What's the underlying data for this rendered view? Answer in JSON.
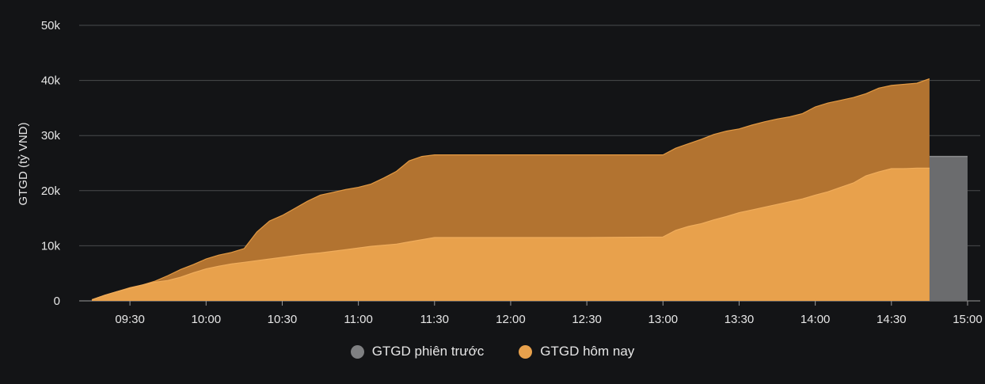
{
  "chart_data": {
    "type": "area",
    "ylabel": "GTGD (tỷ VND)",
    "ylim": [
      0,
      50000
    ],
    "yticks": [
      0,
      10000,
      20000,
      30000,
      40000,
      50000
    ],
    "ytick_labels": [
      "0",
      "10k",
      "20k",
      "30k",
      "40k",
      "50k"
    ],
    "xlim": [
      "09:10",
      "15:05"
    ],
    "xticks": [
      "09:30",
      "10:00",
      "10:30",
      "11:00",
      "11:30",
      "12:00",
      "12:30",
      "13:00",
      "13:30",
      "14:00",
      "14:30",
      "15:00"
    ],
    "grid": true,
    "legend_position": "bottom-center",
    "series": [
      {
        "name": "GTGD phiên trước",
        "type": "area",
        "color": "#e8a14c",
        "x": [
          "09:15",
          "09:20",
          "09:25",
          "09:30",
          "09:35",
          "09:40",
          "09:45",
          "09:50",
          "09:55",
          "10:00",
          "10:05",
          "10:10",
          "10:15",
          "10:20",
          "10:25",
          "10:30",
          "10:35",
          "10:40",
          "10:45",
          "10:50",
          "10:55",
          "11:00",
          "11:05",
          "11:10",
          "11:15",
          "11:20",
          "11:25",
          "11:30",
          "12:00",
          "12:30",
          "13:00",
          "13:05",
          "13:10",
          "13:15",
          "13:20",
          "13:25",
          "13:30",
          "13:35",
          "13:40",
          "13:45",
          "13:50",
          "13:55",
          "14:00",
          "14:05",
          "14:10",
          "14:15",
          "14:20",
          "14:25",
          "14:30",
          "14:35",
          "14:40",
          "14:45"
        ],
        "y": [
          200,
          1000,
          1700,
          2300,
          2900,
          3400,
          3700,
          4300,
          5100,
          5800,
          6300,
          6700,
          7000,
          7300,
          7600,
          7900,
          8200,
          8500,
          8700,
          9000,
          9300,
          9600,
          9900,
          10100,
          10300,
          10700,
          11100,
          11500,
          11500,
          11500,
          11600,
          12800,
          13500,
          14000,
          14700,
          15300,
          16000,
          16500,
          17000,
          17500,
          18000,
          18500,
          19200,
          19800,
          20600,
          21400,
          22700,
          23400,
          24000,
          24000,
          24100,
          24100
        ]
      },
      {
        "name": "GTGD hôm nay",
        "type": "area",
        "color": "#b27330",
        "x": [
          "09:15",
          "09:20",
          "09:25",
          "09:30",
          "09:35",
          "09:40",
          "09:45",
          "09:50",
          "09:55",
          "10:00",
          "10:05",
          "10:10",
          "10:15",
          "10:20",
          "10:25",
          "10:30",
          "10:35",
          "10:40",
          "10:45",
          "10:50",
          "10:55",
          "11:00",
          "11:05",
          "11:10",
          "11:15",
          "11:20",
          "11:25",
          "11:30",
          "12:00",
          "12:30",
          "13:00",
          "13:05",
          "13:10",
          "13:15",
          "13:20",
          "13:25",
          "13:30",
          "13:35",
          "13:40",
          "13:45",
          "13:50",
          "13:55",
          "14:00",
          "14:05",
          "14:10",
          "14:15",
          "14:20",
          "14:25",
          "14:30",
          "14:35",
          "14:40",
          "14:45"
        ],
        "y": [
          200,
          1000,
          1700,
          2400,
          2900,
          3600,
          4600,
          5700,
          6600,
          7600,
          8300,
          8800,
          9500,
          12500,
          14500,
          15500,
          16800,
          18100,
          19200,
          19700,
          20200,
          20600,
          21200,
          22300,
          23500,
          25400,
          26200,
          26500,
          26500,
          26500,
          26500,
          27700,
          28500,
          29300,
          30200,
          30800,
          31200,
          31900,
          32500,
          33000,
          33400,
          34000,
          35200,
          35900,
          36400,
          36900,
          37600,
          38600,
          39100,
          39300,
          39500,
          40300
        ]
      },
      {
        "name": "GTGD phiên trước",
        "type": "bar",
        "color": "#6b6c6e",
        "x_range": [
          "14:45",
          "15:00"
        ],
        "value": 26200
      }
    ],
    "legend": [
      {
        "label": "GTGD phiên trước",
        "color": "#7f8082"
      },
      {
        "label": "GTGD hôm nay",
        "color": "#e8a14c"
      }
    ]
  }
}
